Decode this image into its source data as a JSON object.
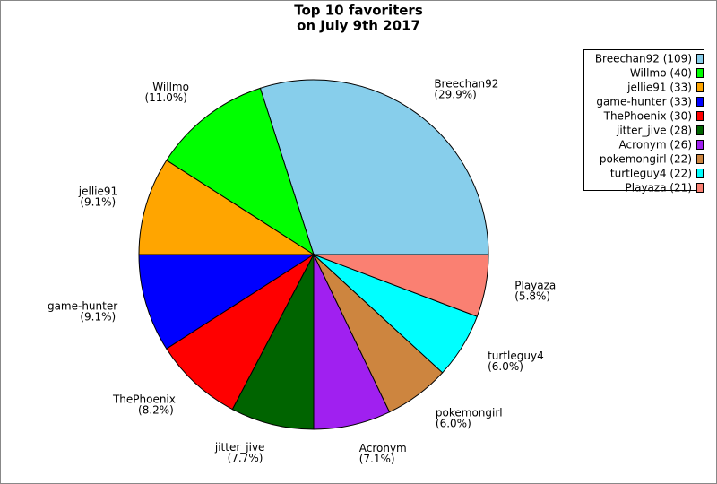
{
  "chart_data": {
    "type": "pie",
    "title": "Top 10 favoriters",
    "subtitle": "on July 9th 2017",
    "categories": [
      "Breechan92",
      "Willmo",
      "jellie91",
      "game-hunter",
      "ThePhoenix",
      "jitter_jive",
      "Acronym",
      "pokemongirl",
      "turtleguy4",
      "Playaza"
    ],
    "values": [
      109,
      40,
      33,
      33,
      30,
      28,
      26,
      22,
      22,
      21
    ],
    "value_labels": [
      "(29.9%)",
      "(11.0%)",
      "(9.1%)",
      "(9.1%)",
      "(8.2%)",
      "(7.7%)",
      "(7.1%)",
      "(6.0%)",
      "(6.0%)",
      "(5.8%)"
    ],
    "legend_labels": [
      "Breechan92 (109)",
      "Willmo (40)",
      "jellie91 (33)",
      "game-hunter (33)",
      "ThePhoenix (30)",
      "jitter_jive (28)",
      "Acronym (26)",
      "pokemongirl (22)",
      "turtleguy4 (22)",
      "Playaza (21)"
    ],
    "colors": [
      "#87ceeb",
      "#00ff00",
      "#ffa500",
      "#0000ff",
      "#ff0000",
      "#006400",
      "#a020f0",
      "#cd853f",
      "#00ffff",
      "#fa8072"
    ],
    "legend": "top-right"
  }
}
